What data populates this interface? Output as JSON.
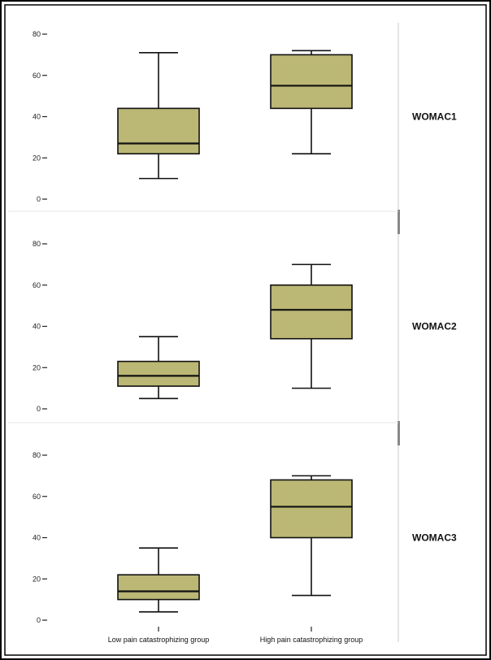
{
  "chart_data": {
    "type": "boxplot",
    "categories": [
      "Low pain catastrophizing group",
      "High pain catastrophizing group"
    ],
    "y_ticks": [
      0,
      20,
      40,
      60,
      80
    ],
    "ylim": [
      0,
      80
    ],
    "colors": {
      "box_fill": "#bbb774",
      "stroke": "#111111",
      "frame": "#000000"
    },
    "panels": [
      {
        "label": "WOMAC1",
        "boxes": [
          {
            "min": 10,
            "q1": 22,
            "median": 27,
            "q3": 44,
            "max": 71
          },
          {
            "min": 22,
            "q1": 44,
            "median": 55,
            "q3": 70,
            "max": 72
          }
        ]
      },
      {
        "label": "WOMAC2",
        "boxes": [
          {
            "min": 5,
            "q1": 11,
            "median": 16,
            "q3": 23,
            "max": 35
          },
          {
            "min": 10,
            "q1": 34,
            "median": 48,
            "q3": 60,
            "max": 70
          }
        ]
      },
      {
        "label": "WOMAC3",
        "boxes": [
          {
            "min": 4,
            "q1": 10,
            "median": 14,
            "q3": 22,
            "max": 35
          },
          {
            "min": 12,
            "q1": 40,
            "median": 55,
            "q3": 68,
            "max": 70
          }
        ]
      }
    ]
  }
}
